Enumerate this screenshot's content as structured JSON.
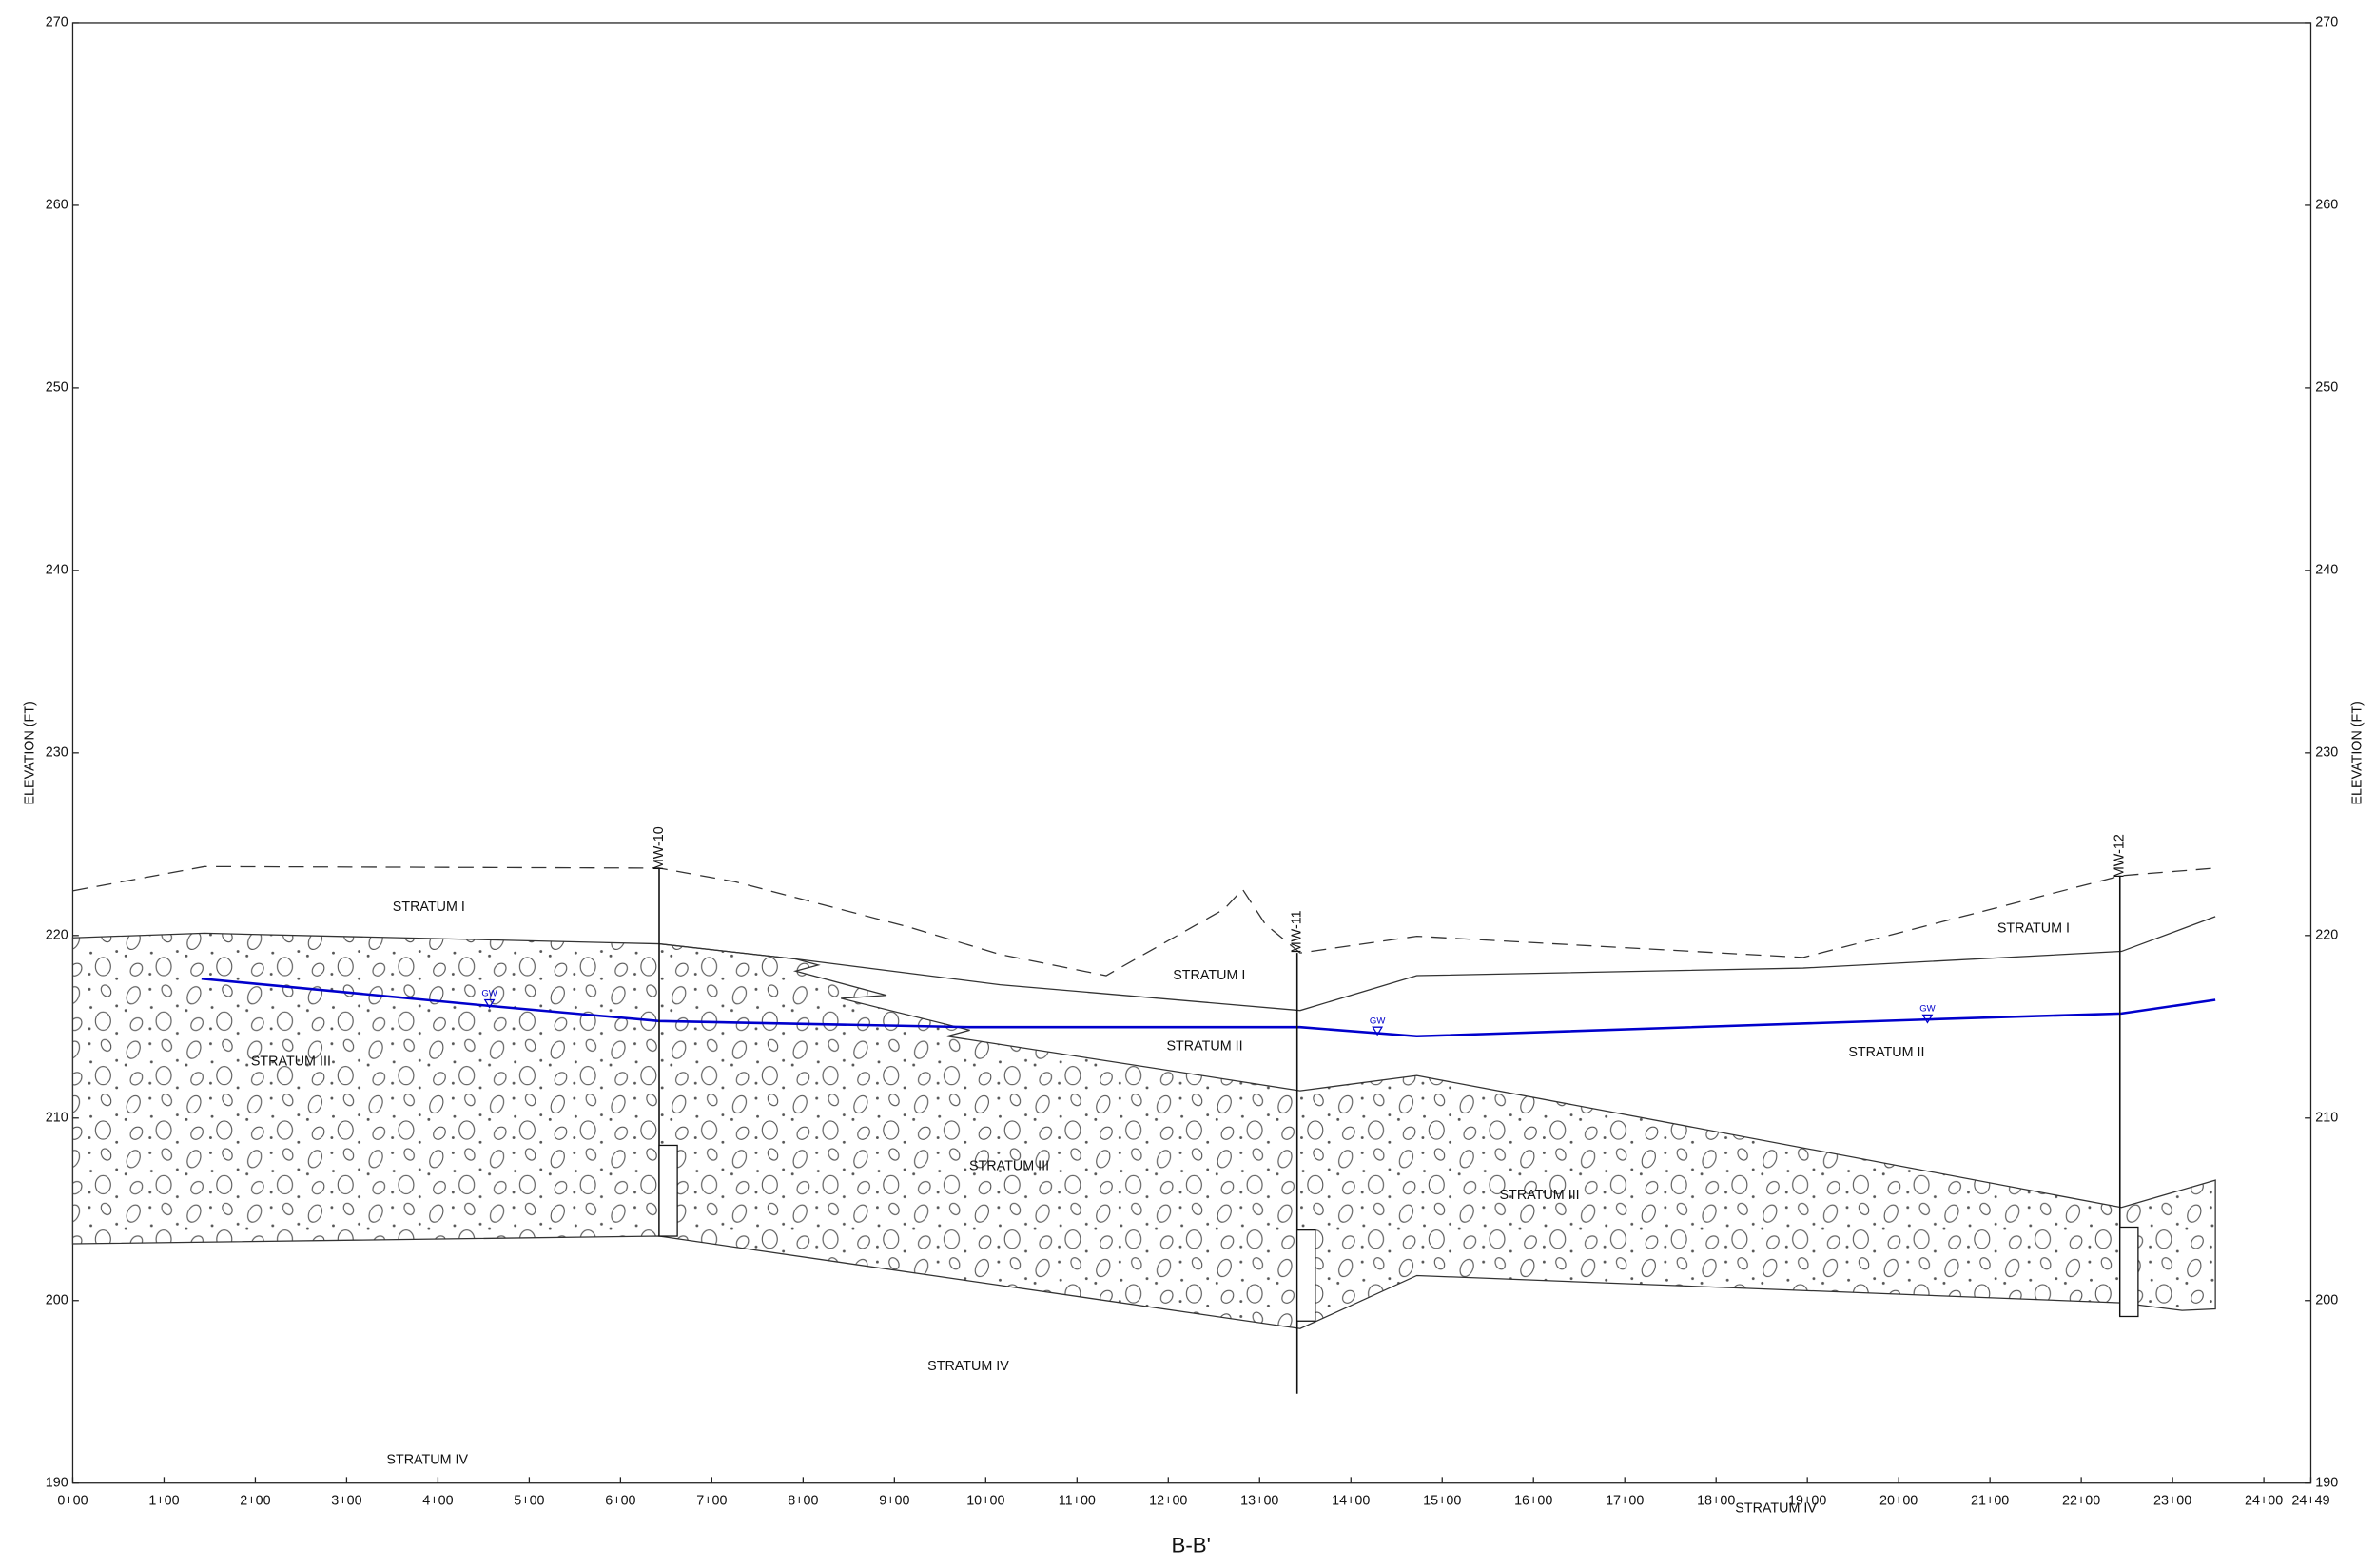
{
  "title": "B-B'",
  "elevation_titles": [
    "ELEVATION (FT)",
    "ELEVATION (FT)"
  ],
  "y_labels": [
    "270",
    "260",
    "250",
    "240",
    "230",
    "220",
    "210",
    "200",
    "190"
  ],
  "x_labels": [
    "0+00",
    "1+00",
    "2+00",
    "3+00",
    "4+00",
    "5+00",
    "6+00",
    "7+00",
    "8+00",
    "9+00",
    "10+00",
    "11+00",
    "12+00",
    "13+00",
    "14+00",
    "15+00",
    "16+00",
    "17+00",
    "18+00",
    "19+00",
    "20+00",
    "21+00",
    "22+00",
    "23+00",
    "24+00",
    "24+49"
  ],
  "wells": [
    "MW-10",
    "MW-11",
    "MW-12"
  ],
  "gw_markers": [
    "GW",
    "GW",
    "GW"
  ],
  "strata": [
    "STRATUM I",
    "STRATUM I",
    "STRATUM I",
    "STRATUM II",
    "STRATUM II",
    "STRATUM III",
    "STRATUM III",
    "STRATUM III",
    "STRATUM IV",
    "STRATUM IV",
    "STRATUM IV"
  ]
}
